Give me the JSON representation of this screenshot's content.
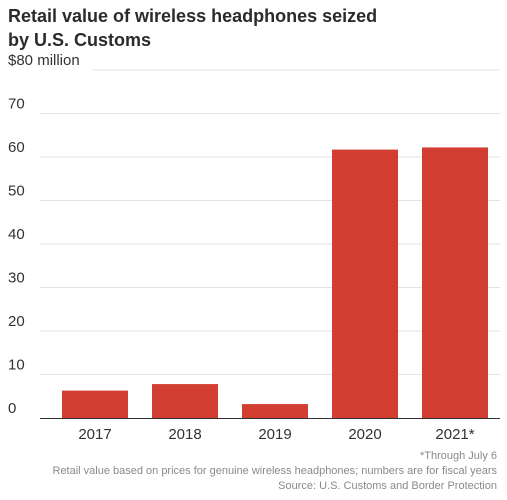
{
  "title_lines": [
    "Retail value of wireless headphones seized",
    "by  U.S. Customs"
  ],
  "notes": {
    "footnote": "*Through July 6",
    "basis": "Retail value based on prices for genuine wireless headphones; numbers are for fiscal years",
    "source": "Source: U.S. Customs and Border Protection"
  },
  "chart_data": {
    "type": "bar",
    "title": "Retail value of wireless headphones seized by U.S. Customs",
    "categories": [
      "2017",
      "2018",
      "2019",
      "2020",
      "2021*"
    ],
    "values": [
      6.3,
      7.8,
      3.2,
      61.7,
      62.2
    ],
    "ylabel": "",
    "xlabel": "",
    "ylim": [
      0,
      80
    ],
    "yticks": [
      0,
      10,
      20,
      30,
      40,
      50,
      60,
      70,
      80
    ],
    "ytick_labels": [
      "0",
      "10",
      "20",
      "30",
      "40",
      "50",
      "60",
      "70",
      "$80 million"
    ],
    "grid": true,
    "legend": "none",
    "bar_color": "#d23f32"
  }
}
